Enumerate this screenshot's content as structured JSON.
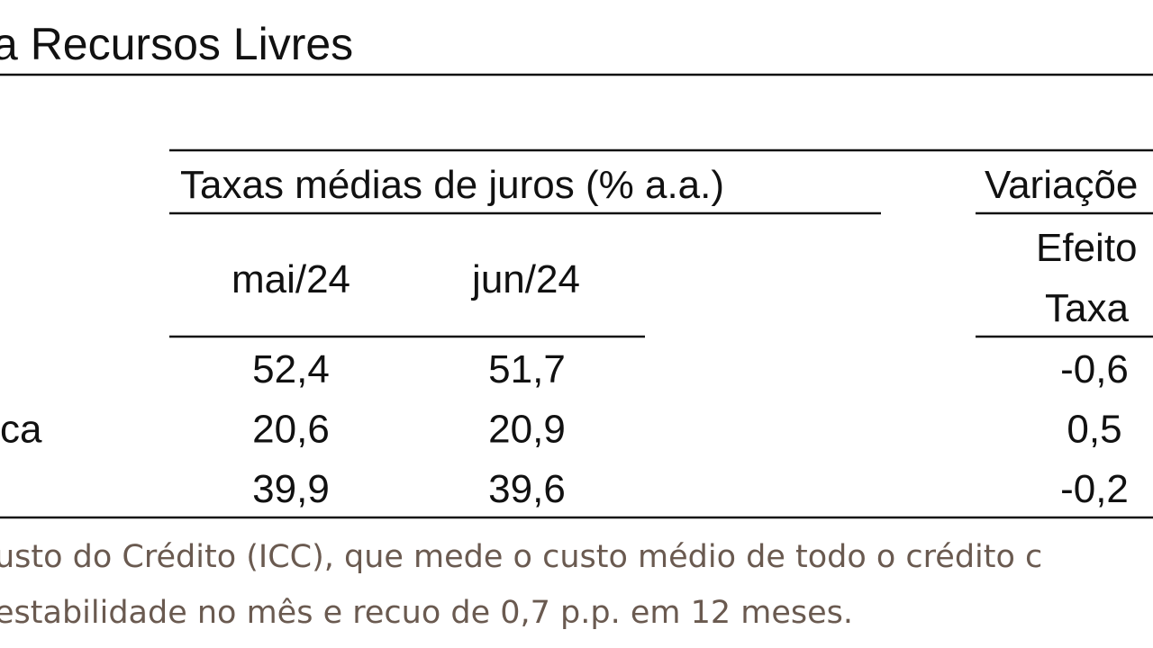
{
  "title": "a Recursos Livres",
  "table": {
    "group_header": "Taxas médias de juros (% a.a.)",
    "variation_header": "Variaçõe",
    "effect_header": [
      "Efeito",
      "Taxa"
    ],
    "columns": [
      "mai/24",
      "jun/24"
    ],
    "rows": [
      {
        "label": "",
        "values": [
          "52,4",
          "51,7",
          "-0,6"
        ]
      },
      {
        "label": "ca",
        "values": [
          "20,6",
          "20,9",
          "0,5"
        ]
      },
      {
        "label": "",
        "values": [
          "39,9",
          "39,6",
          "-0,2"
        ]
      }
    ]
  },
  "footnote": [
    "usto do Crédito (ICC), que mede o custo médio de todo o crédito c",
    "estabilidade no mês e recuo de 0,7 p.p. em 12 meses."
  ]
}
